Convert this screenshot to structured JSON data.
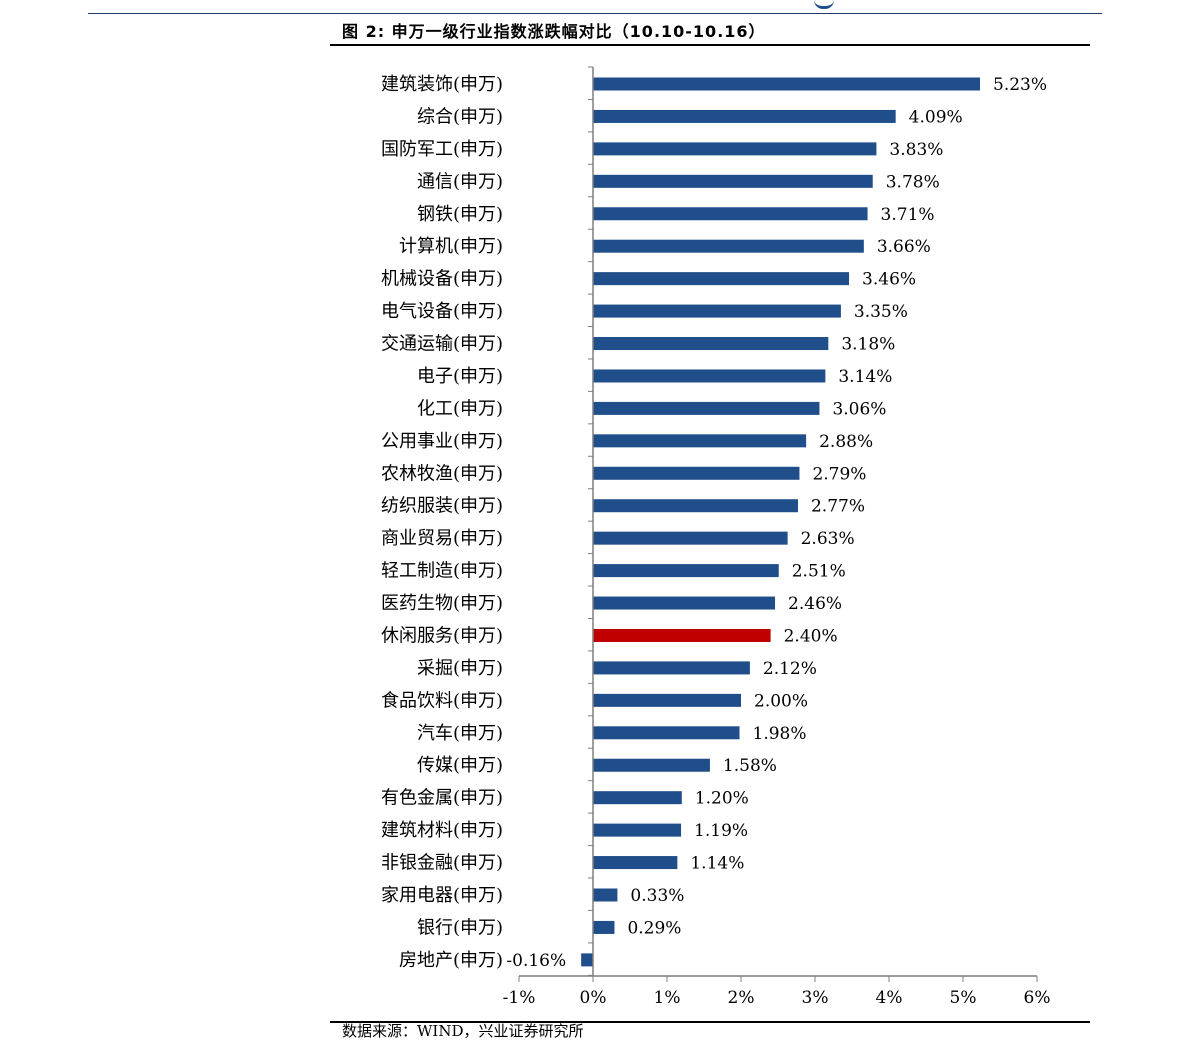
{
  "figure": {
    "title": "图 2:  申万一级行业指数涨跌幅对比（10.10-10.16）",
    "source": "数据来源：WIND，兴业证券研究所"
  },
  "colors": {
    "default_bar": "#1f4e8a",
    "highlight_bar": "#c00000",
    "axis": "#7f7f7f"
  },
  "chart_data": {
    "type": "bar",
    "orientation": "horizontal",
    "title": "申万一级行业指数涨跌幅对比（10.10-10.16）",
    "xlabel": "",
    "ylabel": "",
    "xlim": [
      -1,
      6
    ],
    "xticks": [
      -1,
      0,
      1,
      2,
      3,
      4,
      5,
      6
    ],
    "xtick_labels": [
      "-1%",
      "0%",
      "1%",
      "2%",
      "3%",
      "4%",
      "5%",
      "6%"
    ],
    "unit": "%",
    "highlight": "休闲服务(申万)",
    "categories": [
      "建筑装饰(申万)",
      "综合(申万)",
      "国防军工(申万)",
      "通信(申万)",
      "钢铁(申万)",
      "计算机(申万)",
      "机械设备(申万)",
      "电气设备(申万)",
      "交通运输(申万)",
      "电子(申万)",
      "化工(申万)",
      "公用事业(申万)",
      "农林牧渔(申万)",
      "纺织服装(申万)",
      "商业贸易(申万)",
      "轻工制造(申万)",
      "医药生物(申万)",
      "休闲服务(申万)",
      "采掘(申万)",
      "食品饮料(申万)",
      "汽车(申万)",
      "传媒(申万)",
      "有色金属(申万)",
      "建筑材料(申万)",
      "非银金融(申万)",
      "家用电器(申万)",
      "银行(申万)",
      "房地产(申万)"
    ],
    "values": [
      5.23,
      4.09,
      3.83,
      3.78,
      3.71,
      3.66,
      3.46,
      3.35,
      3.18,
      3.14,
      3.06,
      2.88,
      2.79,
      2.77,
      2.63,
      2.51,
      2.46,
      2.4,
      2.12,
      2.0,
      1.98,
      1.58,
      1.2,
      1.19,
      1.14,
      0.33,
      0.29,
      -0.16
    ],
    "value_labels": [
      "5.23%",
      "4.09%",
      "3.83%",
      "3.78%",
      "3.71%",
      "3.66%",
      "3.46%",
      "3.35%",
      "3.18%",
      "3.14%",
      "3.06%",
      "2.88%",
      "2.79%",
      "2.77%",
      "2.63%",
      "2.51%",
      "2.46%",
      "2.40%",
      "2.12%",
      "2.00%",
      "1.98%",
      "1.58%",
      "1.20%",
      "1.19%",
      "1.14%",
      "0.33%",
      "0.29%",
      "-0.16%"
    ]
  }
}
